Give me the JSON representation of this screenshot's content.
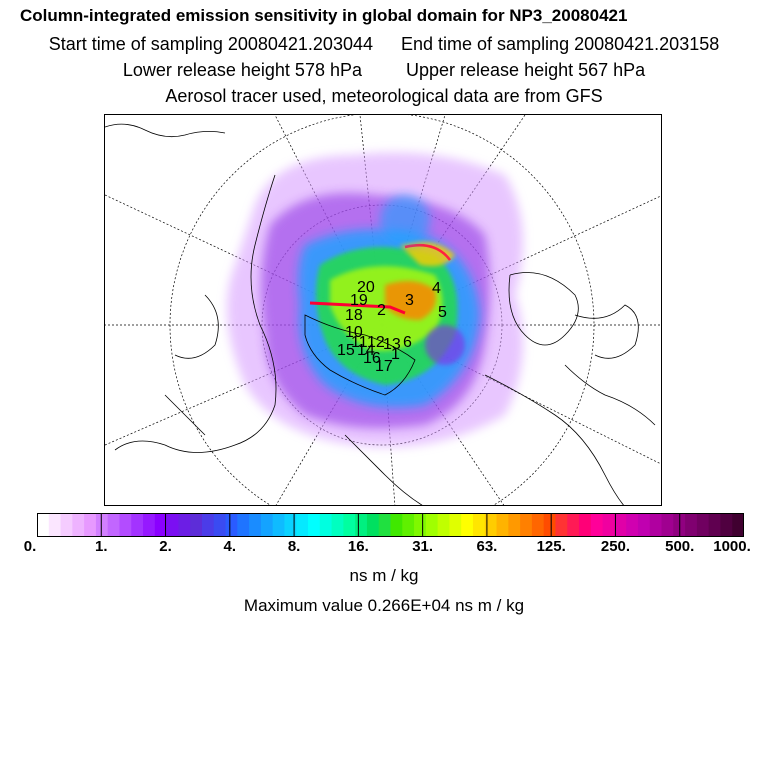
{
  "header": {
    "title": "Column-integrated emission sensitivity in global domain for NP3_20080421",
    "start_time": "Start time of sampling 20080421.203044",
    "end_time": "End time of sampling 20080421.203158",
    "lower_release": "Lower release height  578 hPa",
    "upper_release": "Upper release height  567 hPa",
    "info": "Aerosol tracer used, meteorological data are from GFS"
  },
  "map": {
    "labels": [
      "20",
      "19",
      "18",
      "2",
      "3",
      "4",
      "5",
      "6",
      "10",
      "11",
      "12",
      "13",
      "14",
      "15",
      "16",
      "17",
      "1"
    ]
  },
  "colorbar": {
    "tick_labels": [
      "0.",
      "1.",
      "2.",
      "4.",
      "8.",
      "16.",
      "31.",
      "63.",
      "125.",
      "250.",
      "500.",
      "1000."
    ],
    "colors": [
      "#ffffff",
      "#fbe6ff",
      "#f5ccff",
      "#eeb3ff",
      "#e799ff",
      "#d27fff",
      "#c266ff",
      "#b34cff",
      "#a333ff",
      "#9619ff",
      "#8a00ff",
      "#7b0ff2",
      "#6c1ee5",
      "#5d2dd8",
      "#4b3ce8",
      "#3a4bf2",
      "#2a5bff",
      "#1f74ff",
      "#1a8cff",
      "#14a3ff",
      "#0fbbff",
      "#0ad2ff",
      "#05e9ff",
      "#00ffff",
      "#00ffe0",
      "#00ffc0",
      "#00ffa0",
      "#00f080",
      "#00e060",
      "#20e040",
      "#40e800",
      "#60f000",
      "#80f800",
      "#a0ff00",
      "#c0ff00",
      "#e0ff00",
      "#ffff00",
      "#ffe600",
      "#ffcc00",
      "#ffb300",
      "#ff9900",
      "#ff8000",
      "#ff6600",
      "#ff4c00",
      "#ff3333",
      "#ff1a55",
      "#ff0077",
      "#ff0099",
      "#f000a0",
      "#e000a8",
      "#d000b0",
      "#c000b0",
      "#b000a0",
      "#a00090",
      "#900080",
      "#800070",
      "#700060",
      "#600050",
      "#500040",
      "#400030"
    ],
    "units": "ns m / kg",
    "max_value": "Maximum value  0.266E+04 ns m / kg"
  }
}
